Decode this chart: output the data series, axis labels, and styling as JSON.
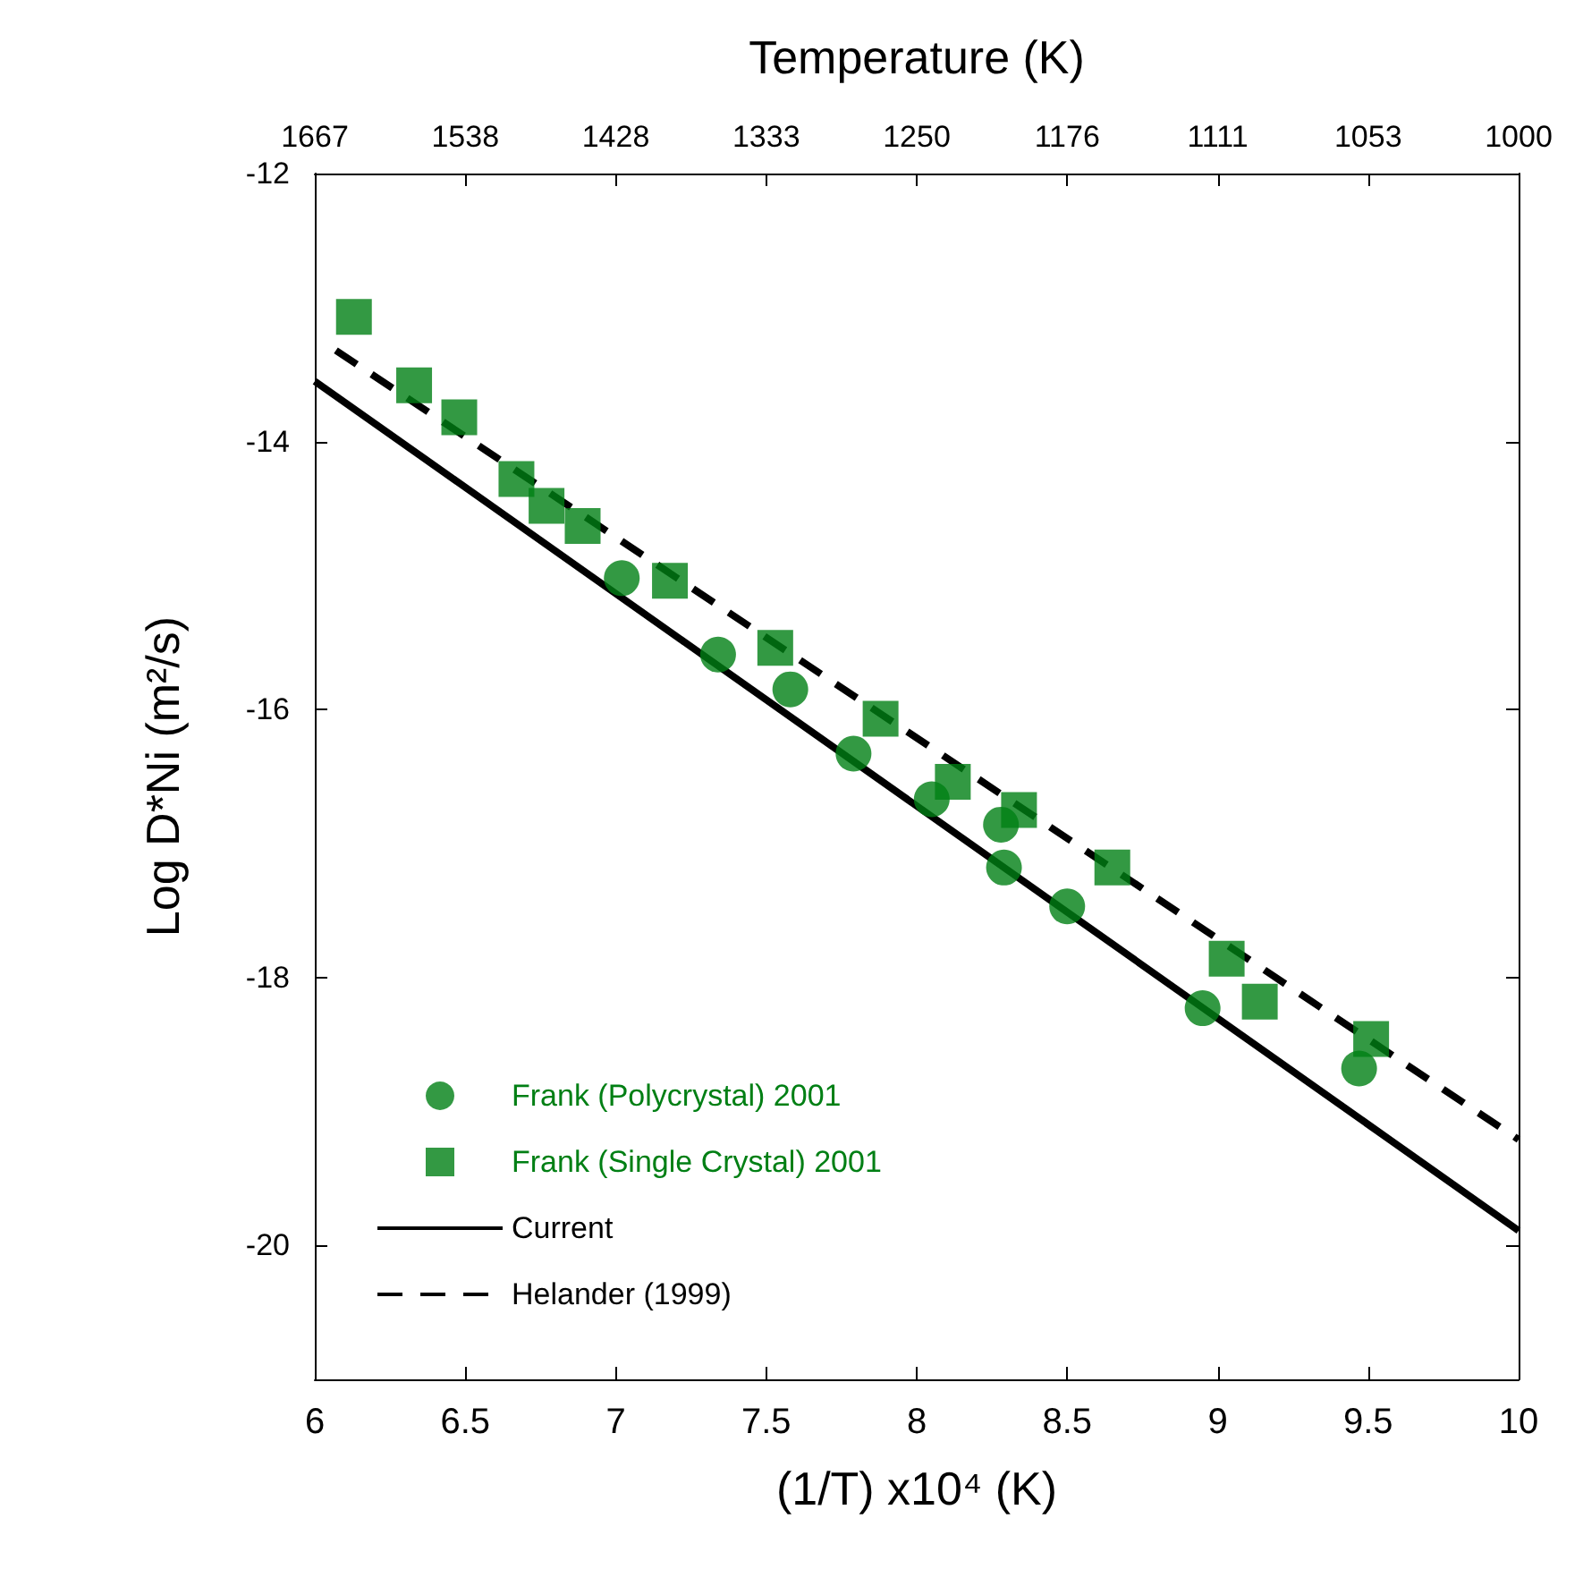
{
  "chart_data": {
    "type": "scatter",
    "xlabel": "(1/T) x10⁴ (K)",
    "ylabel": "Log D*Ni (m²/s)",
    "x2label": "Temperature (K)",
    "xlim": [
      6,
      10
    ],
    "xticks": [
      6,
      6.5,
      7,
      7.5,
      8,
      8.5,
      9,
      9.5,
      10
    ],
    "annotations": [
      "1667",
      "1538",
      "1428",
      "1333",
      "1250",
      "1176",
      "1111",
      "1053",
      "1000"
    ],
    "ylim": [
      -21,
      -12
    ],
    "yticks": [
      -12,
      -14,
      -16,
      -18,
      -20
    ],
    "grid": false,
    "legend": "bottom left",
    "series": [
      {
        "name": "Frank (Polycrystal) 2001",
        "marker": "circle",
        "color": "#007f14",
        "x": [
          7.02,
          7.34,
          7.58,
          7.79,
          8.05,
          8.28,
          8.29,
          8.5,
          8.95,
          9.47
        ],
        "values": [
          -15.02,
          -15.59,
          -15.85,
          -16.33,
          -16.67,
          -16.86,
          -17.18,
          -17.47,
          -18.23,
          -18.68
        ]
      },
      {
        "name": "Frank (Single Crystal) 2001",
        "marker": "square",
        "color": "#007f14",
        "x": [
          6.13,
          6.33,
          6.48,
          6.67,
          6.77,
          6.89,
          7.18,
          7.53,
          7.88,
          8.12,
          8.34,
          8.65,
          9.03,
          9.14,
          9.51
        ],
        "values": [
          -13.07,
          -13.58,
          -13.82,
          -14.28,
          -14.48,
          -14.63,
          -15.04,
          -15.54,
          -16.07,
          -16.54,
          -16.75,
          -17.18,
          -17.86,
          -18.18,
          -18.46
        ]
      },
      {
        "name": "Current",
        "type": "line",
        "marker": "none",
        "line_style": "solid",
        "color": "#000000",
        "x": [
          6,
          10
        ],
        "values": [
          -13.55,
          -19.89
        ]
      },
      {
        "name": "Helander (1999)",
        "type": "line",
        "marker": "none",
        "line_style": "dashed",
        "color": "#000000",
        "x": [
          6.07,
          10
        ],
        "values": [
          -13.32,
          -19.21
        ]
      }
    ]
  }
}
